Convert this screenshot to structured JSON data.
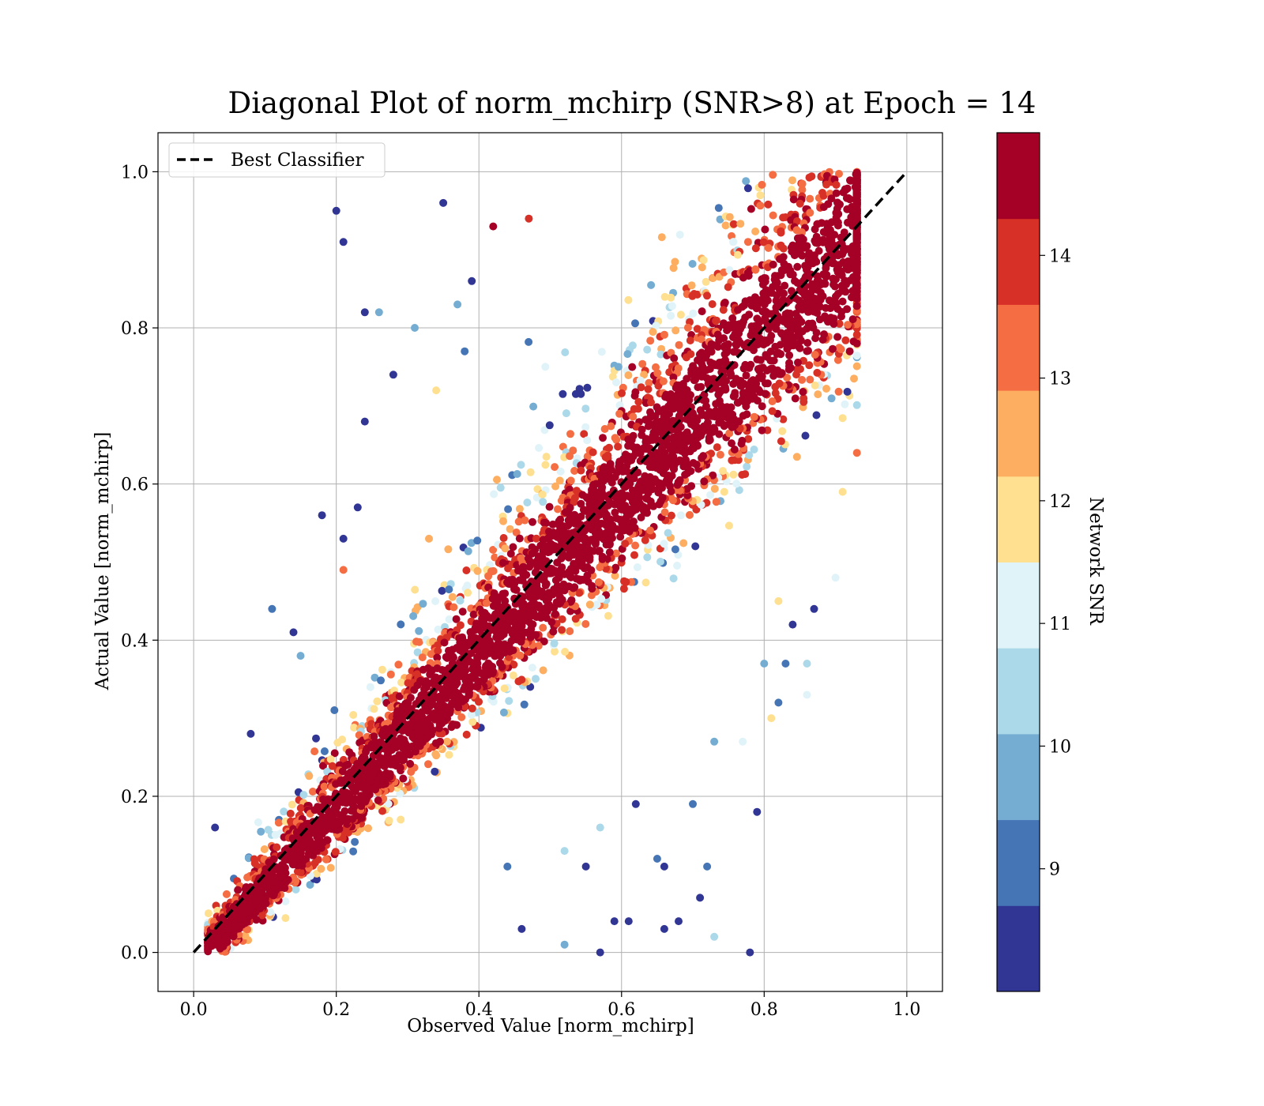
{
  "chart_data": {
    "type": "scatter",
    "title": "Diagonal Plot of norm_mchirp (SNR>8) at Epoch = 14",
    "xlabel": "Observed Value [norm_mchirp]",
    "ylabel": "Actual Value [norm_mchirp]",
    "xlim": [
      -0.05,
      1.05
    ],
    "ylim": [
      -0.05,
      1.05
    ],
    "grid": true,
    "x_ticks": [
      0.0,
      0.2,
      0.4,
      0.6,
      0.8,
      1.0
    ],
    "y_ticks": [
      0.0,
      0.2,
      0.4,
      0.6,
      0.8,
      1.0
    ],
    "x_tick_labels": [
      "0.0",
      "0.2",
      "0.4",
      "0.6",
      "0.8",
      "1.0"
    ],
    "y_tick_labels": [
      "0.0",
      "0.2",
      "0.4",
      "0.6",
      "0.8",
      "1.0"
    ],
    "legend": {
      "placement": "upper-left",
      "entries": [
        {
          "label": "Best Classifier",
          "style": "dashed",
          "color": "#000000"
        }
      ]
    },
    "reference_line": {
      "x": [
        0.0,
        1.0
      ],
      "y": [
        0.0,
        1.0
      ]
    },
    "colorbar": {
      "label": "Network SNR",
      "range": [
        8,
        15
      ],
      "ticks": [
        9,
        10,
        11,
        12,
        13,
        14
      ],
      "tick_labels": [
        "9",
        "10",
        "11",
        "12",
        "13",
        "14"
      ],
      "colors": [
        "#313695",
        "#4575b4",
        "#74add1",
        "#abd9e9",
        "#e0f3f8",
        "#fee090",
        "#fdae61",
        "#f46d43",
        "#d73027",
        "#a50026"
      ]
    },
    "points": [
      [
        0.2,
        0.95,
        8.3
      ],
      [
        0.21,
        0.91,
        8.5
      ],
      [
        0.35,
        0.96,
        8.2
      ],
      [
        0.42,
        0.93,
        14.5
      ],
      [
        0.47,
        0.94,
        14.2
      ],
      [
        0.28,
        0.74,
        8.4
      ],
      [
        0.24,
        0.68,
        8.3
      ],
      [
        0.26,
        0.82,
        9.8
      ],
      [
        0.24,
        0.82,
        8.3
      ],
      [
        0.18,
        0.56,
        8.6
      ],
      [
        0.21,
        0.53,
        8.4
      ],
      [
        0.23,
        0.57,
        8.2
      ],
      [
        0.21,
        0.49,
        13.4
      ],
      [
        0.11,
        0.44,
        9.2
      ],
      [
        0.14,
        0.41,
        8.5
      ],
      [
        0.15,
        0.38,
        9.4
      ],
      [
        0.08,
        0.28,
        8.4
      ],
      [
        0.03,
        0.16,
        8.6
      ],
      [
        0.31,
        0.8,
        9.5
      ],
      [
        0.37,
        0.83,
        9.6
      ],
      [
        0.34,
        0.72,
        12.1
      ],
      [
        0.39,
        0.86,
        8.7
      ],
      [
        0.38,
        0.77,
        8.8
      ],
      [
        0.33,
        0.53,
        12.3
      ],
      [
        0.46,
        0.03,
        8.4
      ],
      [
        0.52,
        0.01,
        9.7
      ],
      [
        0.57,
        0.0,
        8.3
      ],
      [
        0.59,
        0.04,
        8.6
      ],
      [
        0.61,
        0.04,
        8.4
      ],
      [
        0.66,
        0.03,
        8.5
      ],
      [
        0.68,
        0.04,
        8.7
      ],
      [
        0.71,
        0.07,
        8.3
      ],
      [
        0.72,
        0.11,
        9.3
      ],
      [
        0.73,
        0.02,
        10.4
      ],
      [
        0.78,
        0.0,
        8.2
      ],
      [
        0.79,
        0.18,
        8.6
      ],
      [
        0.7,
        0.19,
        9.1
      ],
      [
        0.62,
        0.19,
        8.4
      ],
      [
        0.65,
        0.12,
        8.9
      ],
      [
        0.66,
        0.11,
        8.6
      ],
      [
        0.77,
        0.27,
        11.2
      ],
      [
        0.81,
        0.3,
        12.2
      ],
      [
        0.82,
        0.32,
        9.1
      ],
      [
        0.86,
        0.33,
        11.4
      ],
      [
        0.86,
        0.37,
        10.6
      ],
      [
        0.84,
        0.42,
        8.3
      ],
      [
        0.83,
        0.37,
        9.0
      ],
      [
        0.73,
        0.27,
        9.6
      ],
      [
        0.55,
        0.11,
        8.5
      ],
      [
        0.52,
        0.13,
        10.2
      ],
      [
        0.57,
        0.16,
        10.7
      ],
      [
        0.44,
        0.11,
        8.9
      ],
      [
        0.92,
        0.77,
        14.7
      ],
      [
        0.93,
        0.78,
        14.5
      ],
      [
        0.93,
        0.64,
        13.3
      ],
      [
        0.91,
        0.59,
        12.2
      ],
      [
        0.9,
        0.48,
        11.3
      ],
      [
        0.87,
        0.44,
        8.4
      ],
      [
        0.82,
        0.45,
        11.6
      ],
      [
        0.8,
        0.37,
        9.5
      ]
    ],
    "density_band": {
      "description": "dense diagonal cloud",
      "x_range": [
        0.02,
        0.93
      ],
      "y_range": [
        0.0,
        1.0
      ]
    }
  }
}
